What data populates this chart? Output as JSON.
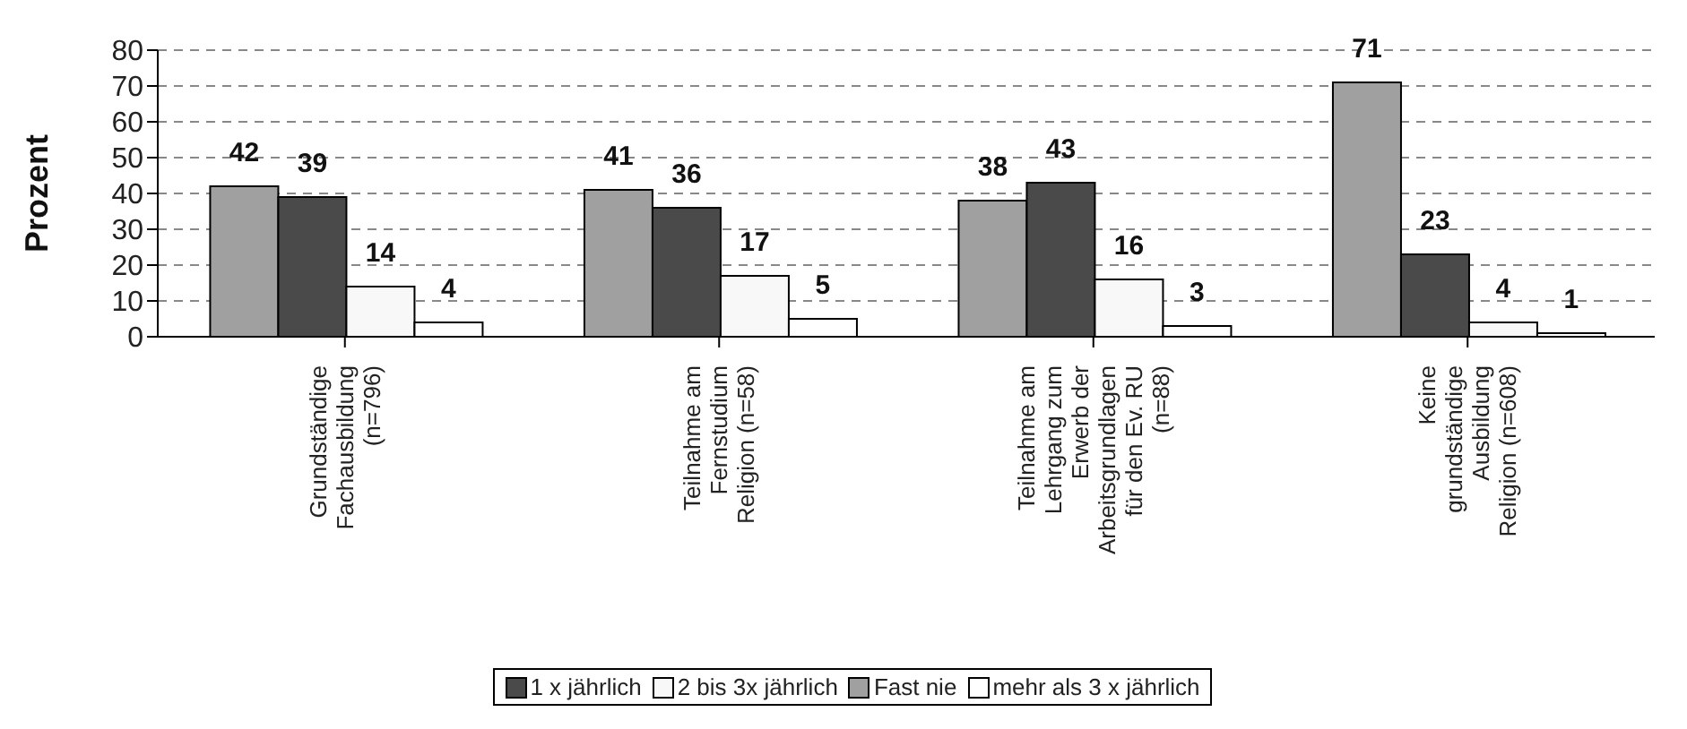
{
  "chart_data": {
    "type": "bar",
    "ylabel": "Prozent",
    "categories": [
      "Grundständige Fachausbildung (n=796)",
      "Teilnahme am Fernstudium Religion (n=58)",
      "Teilnahme am Lehrgang zum Erwerb der Arbeitsgrundlagen für den Ev. RU (n=88)",
      "Keine grundständige Ausbildung Religion (n=608)"
    ],
    "series": [
      {
        "name": "Fast nie",
        "color": "#a0a0a0",
        "values": [
          42,
          41,
          38,
          71
        ]
      },
      {
        "name": "1 x jährlich",
        "color": "#4a4a4a",
        "values": [
          39,
          36,
          43,
          23
        ]
      },
      {
        "name": "2 bis 3x jährlich",
        "color": "#f8f8f8",
        "values": [
          14,
          17,
          16,
          4
        ]
      },
      {
        "name": "mehr als 3 x jährlich",
        "color": "#ffffff",
        "values": [
          4,
          5,
          3,
          1
        ]
      }
    ],
    "ylim": [
      0,
      80
    ],
    "yticks": [
      0,
      10,
      20,
      30,
      40,
      50,
      60,
      70,
      80
    ],
    "grid": "y",
    "legend": "bottom",
    "data_labels": true
  }
}
